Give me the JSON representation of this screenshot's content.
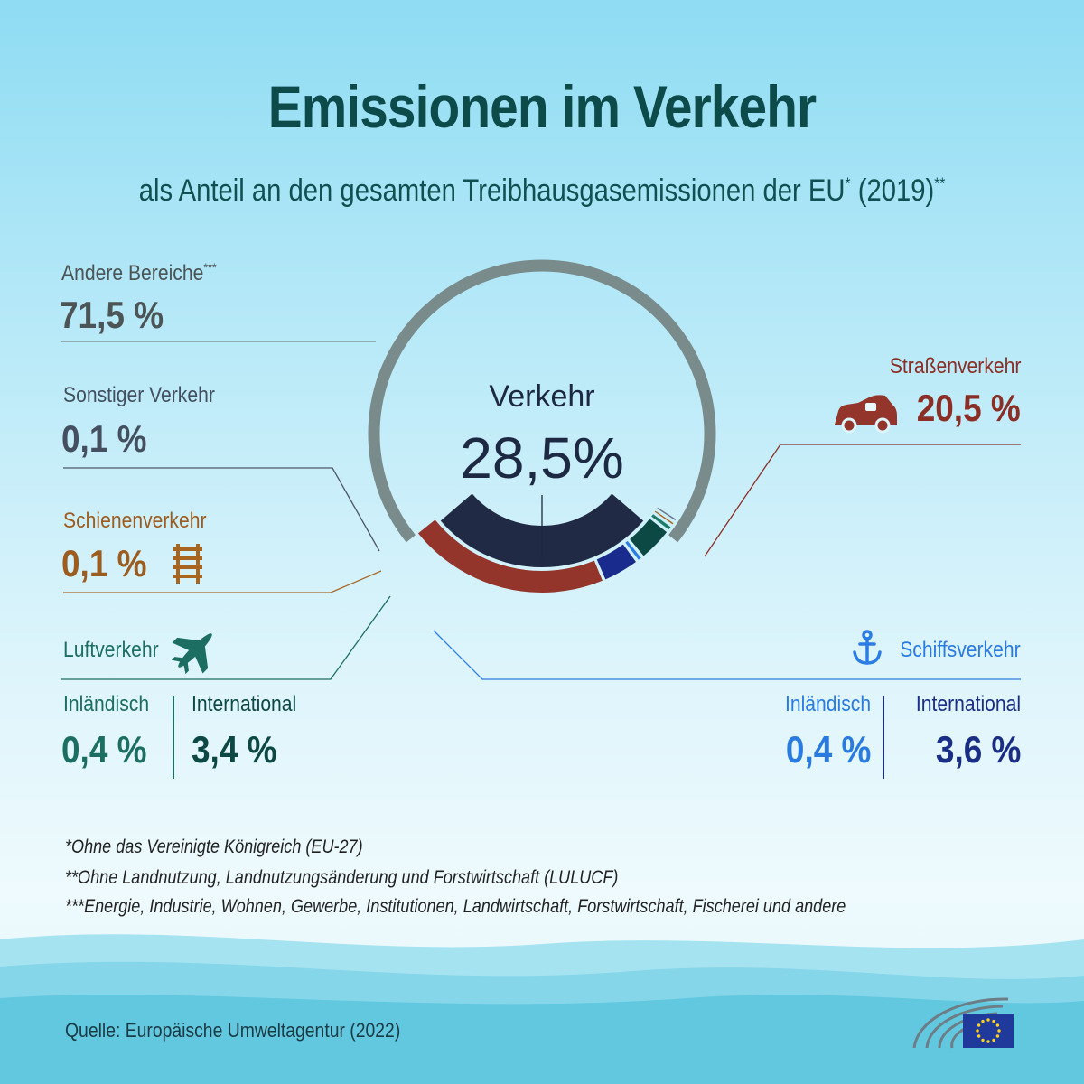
{
  "header": {
    "title": "Emissionen im Verkehr",
    "subtitle_main": "als Anteil an den gesamten Treibhausgasemissionen der EU",
    "subtitle_mark1": "*",
    "subtitle_year": " (2019)",
    "subtitle_mark2": "**"
  },
  "center": {
    "label": "Verkehr",
    "value": "28,5%"
  },
  "labels": {
    "andere": {
      "label": "Andere Bereiche",
      "mark": "***",
      "value": "71,5 %"
    },
    "sonstiger": {
      "label": "Sonstiger Verkehr",
      "value": "0,1 %"
    },
    "schiene": {
      "label": "Schienenverkehr",
      "value": "0,1 %"
    },
    "luft": {
      "label": "Luftverkehr",
      "inl_label": "Inländisch",
      "inl_value": "0,4 %",
      "int_label": "International",
      "int_value": "3,4 %"
    },
    "strasse": {
      "label": "Straßenverkehr",
      "value": "20,5 %"
    },
    "schiff": {
      "label": "Schiffsverkehr",
      "inl_label": "Inländisch",
      "inl_value": "0,4 %",
      "int_label": "International",
      "int_value": "3,6 %"
    }
  },
  "footnotes": [
    "*Ohne das Vereinigte Königreich (EU-27)",
    "**Ohne Landnutzung, Landnutzungsänderung und Forstwirtschaft (LULUCF)",
    "***Energie, Industrie, Wohnen, Gewerbe, Institutionen, Landwirtschaft, Forstwirtschaft, Fischerei und andere"
  ],
  "source": "Quelle: Europäische Umweltagentur (2022)",
  "colors": {
    "andere": "#798b8b",
    "verkehr": "#212a45",
    "strasse": "#94352b",
    "schiff_int": "#1a2b8e",
    "schiff_inl": "#2b7de3",
    "luft_int": "#0c4844",
    "luft_inl": "#1d7b6a",
    "schiene": "#a8651f",
    "sonstiger": "#6a7385"
  },
  "chart_data": {
    "type": "pie",
    "title": "Emissionen im Verkehr",
    "subtitle": "als Anteil an den gesamten Treibhausgasemissionen der EU (2019)",
    "unit": "%",
    "outer_ring": [
      {
        "name": "Andere Bereiche",
        "value": 71.5
      },
      {
        "name": "Verkehr",
        "value": 28.5
      }
    ],
    "transport_breakdown": [
      {
        "name": "Straßenverkehr",
        "value": 20.5
      },
      {
        "name": "Schiffsverkehr International",
        "value": 3.6
      },
      {
        "name": "Schiffsverkehr Inländisch",
        "value": 0.4
      },
      {
        "name": "Luftverkehr International",
        "value": 3.4
      },
      {
        "name": "Luftverkehr Inländisch",
        "value": 0.4
      },
      {
        "name": "Schienenverkehr",
        "value": 0.1
      },
      {
        "name": "Sonstiger Verkehr",
        "value": 0.1
      }
    ]
  }
}
